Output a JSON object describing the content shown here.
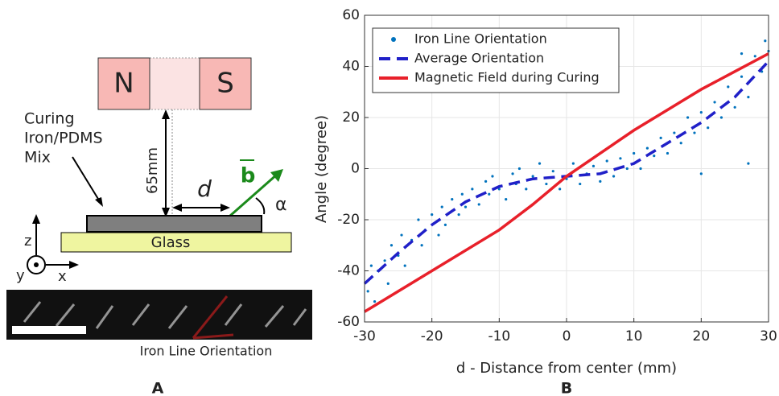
{
  "diagram": {
    "magnet_n": "N",
    "magnet_s": "S",
    "curing_lines": [
      "Curing",
      "Iron/PDMS",
      "Mix"
    ],
    "gap": "65mm",
    "distance": "d",
    "field": "b",
    "angle": "α",
    "substrate": "Glass",
    "axes": [
      "z",
      "y",
      "x"
    ],
    "image_caption": "Iron Line Orientation",
    "panel": "A"
  },
  "chart_data": {
    "type": "scatter",
    "panel": "B",
    "xlabel": "d - Distance from center (mm)",
    "ylabel": "Angle (degree)",
    "xlim": [
      -30,
      30
    ],
    "ylim": [
      -60,
      60
    ],
    "xticks": [
      -30,
      -20,
      -10,
      0,
      10,
      20,
      30
    ],
    "yticks": [
      -60,
      -40,
      -20,
      0,
      20,
      40,
      60
    ],
    "grid": true,
    "legend": "upper-left",
    "series": [
      {
        "name": "Iron Line Orientation",
        "color": "#0072bd",
        "mode": "markers",
        "x": [
          -29.5,
          -29,
          -28.5,
          -28,
          -27,
          -26.5,
          -26,
          -25,
          -24.5,
          -24,
          -23,
          -22,
          -21.5,
          -21,
          -20,
          -19,
          -18.5,
          -18,
          -17,
          -16,
          -15.5,
          -15,
          -14,
          -13,
          -12,
          -11.5,
          -11,
          -10,
          -9,
          -8,
          -7.5,
          -7,
          -6,
          -5,
          -4,
          -3,
          -2,
          -1,
          0,
          1,
          2,
          3,
          4,
          5,
          6,
          7,
          8,
          9,
          10,
          11,
          12,
          13,
          14,
          15,
          16,
          17,
          18,
          19,
          20,
          21,
          22,
          23,
          24,
          25,
          26,
          27,
          28,
          29,
          29.5,
          30,
          20,
          27,
          26
        ],
        "values": [
          -48,
          -38,
          -52,
          -40,
          -36,
          -45,
          -30,
          -34,
          -26,
          -38,
          -28,
          -20,
          -30,
          -24,
          -18,
          -26,
          -15,
          -22,
          -12,
          -18,
          -10,
          -15,
          -8,
          -14,
          -5,
          -10,
          -3,
          -8,
          -12,
          -2,
          -6,
          0,
          -8,
          -3,
          2,
          -6,
          -1,
          -8,
          -4,
          2,
          -6,
          -2,
          1,
          -5,
          3,
          -3,
          4,
          0,
          6,
          0,
          8,
          5,
          12,
          6,
          14,
          10,
          20,
          14,
          22,
          16,
          26,
          20,
          32,
          24,
          36,
          28,
          44,
          38,
          50,
          46,
          -2,
          2,
          45
        ]
      },
      {
        "name": "Average Orientation",
        "color": "#2020c8",
        "mode": "dashed-line",
        "x": [
          -30,
          -25,
          -20,
          -15,
          -10,
          -5,
          0,
          5,
          10,
          15,
          20,
          25,
          30
        ],
        "values": [
          -45,
          -33,
          -22,
          -13,
          -7,
          -4,
          -3,
          -2,
          2,
          10,
          18,
          28,
          42
        ]
      },
      {
        "name": "Magnetic Field during Curing",
        "color": "#e8202a",
        "mode": "line",
        "x": [
          -30,
          -20,
          -10,
          -5,
          0,
          5,
          10,
          15,
          20,
          25,
          30
        ],
        "values": [
          -56,
          -40,
          -24,
          -14,
          -3,
          6,
          15,
          23,
          31,
          38,
          45
        ]
      }
    ]
  }
}
